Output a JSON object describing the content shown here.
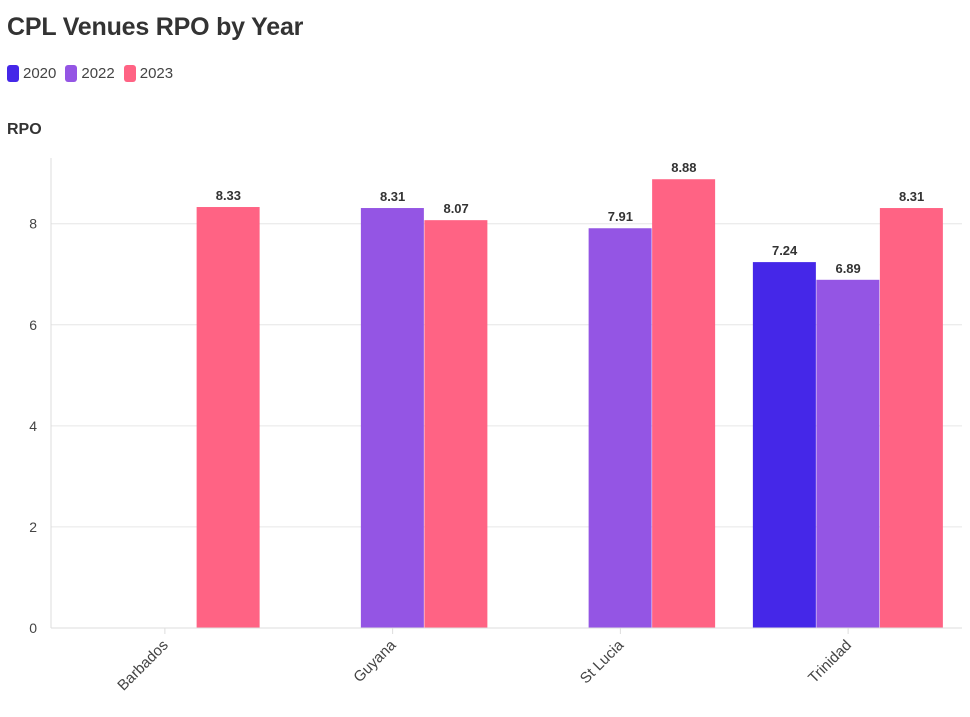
{
  "chart_data": {
    "type": "bar",
    "title": "CPL Venues RPO by Year",
    "ylabel": "RPO",
    "xlabel": "",
    "categories": [
      "Barbados",
      "Guyana",
      "St Lucia",
      "Trinidad"
    ],
    "series": [
      {
        "name": "2020",
        "color": "#4527E8",
        "values": [
          null,
          null,
          null,
          7.24
        ]
      },
      {
        "name": "2022",
        "color": "#9455E4",
        "values": [
          null,
          8.31,
          7.91,
          6.89
        ]
      },
      {
        "name": "2023",
        "color": "#FF6384",
        "values": [
          8.33,
          8.07,
          8.88,
          8.31
        ]
      }
    ],
    "ylim": [
      0,
      9.3
    ],
    "yticks": [
      0,
      2,
      4,
      6,
      8
    ],
    "grid": true,
    "legend_position": "top-left"
  }
}
